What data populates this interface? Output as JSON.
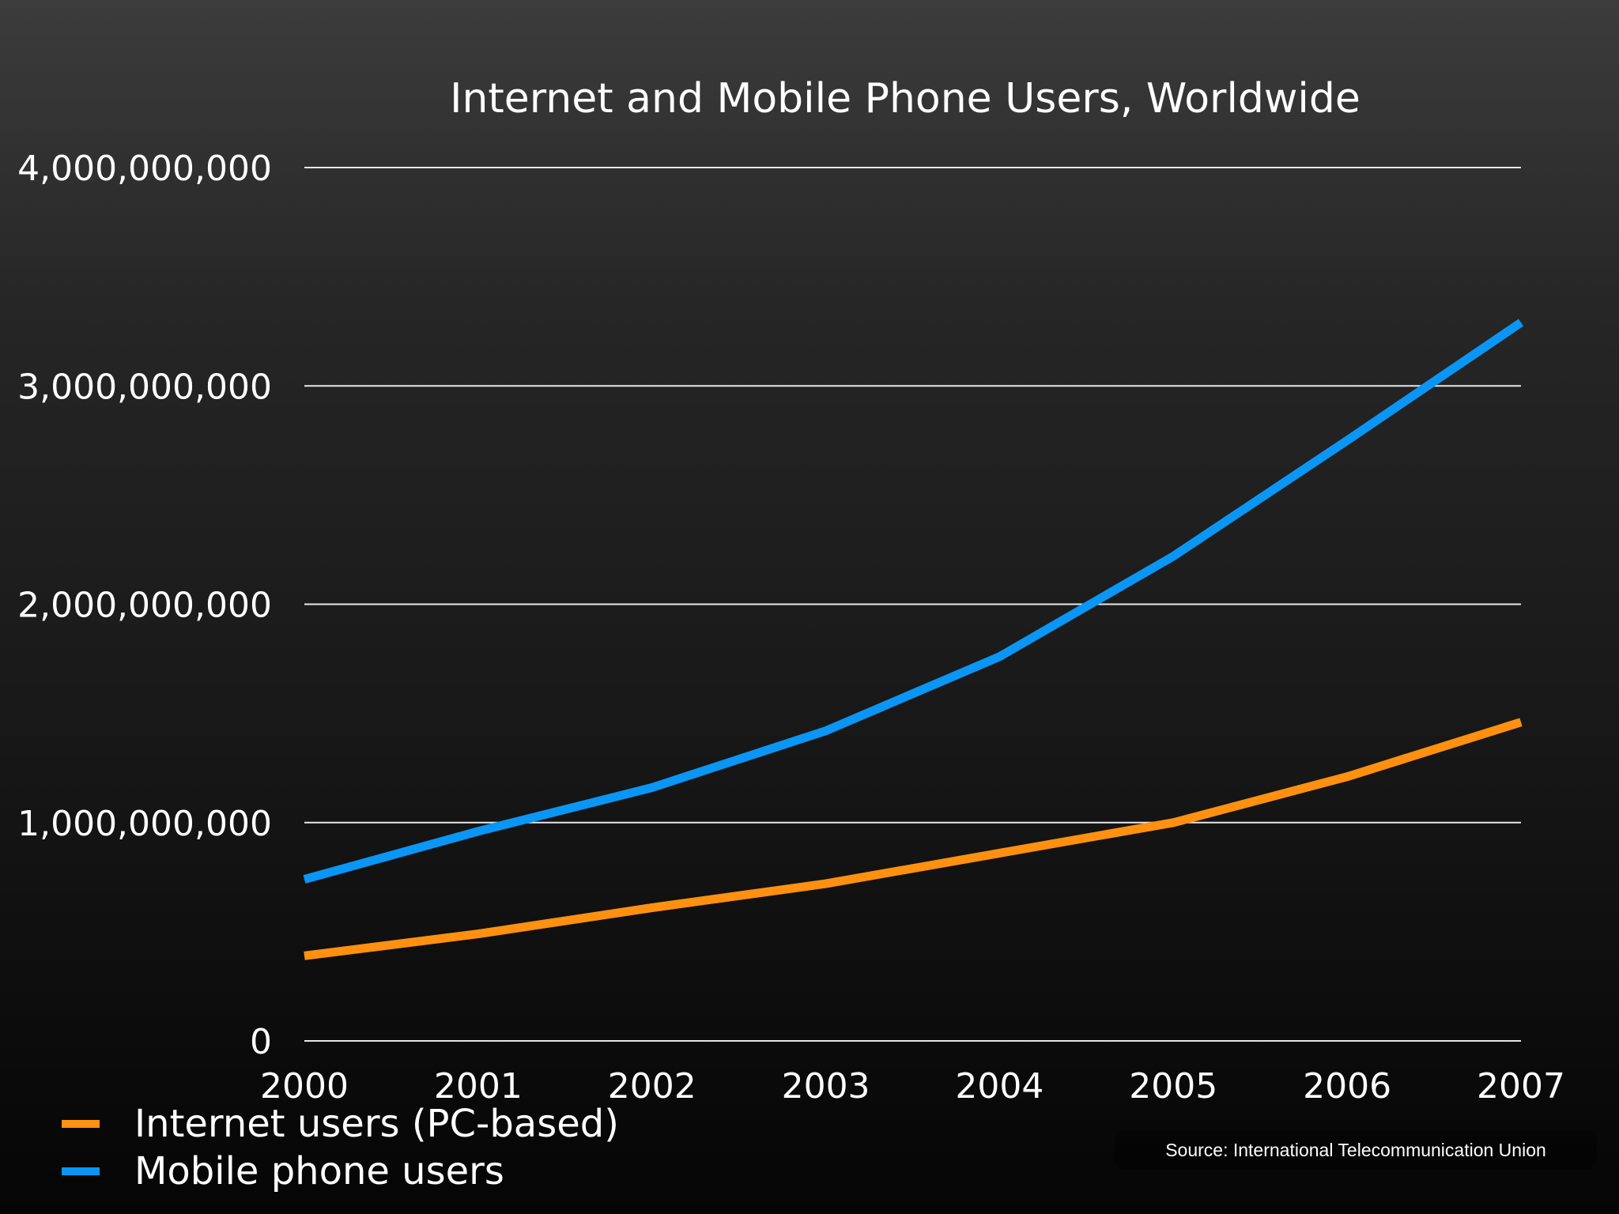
{
  "chart_data": {
    "type": "line",
    "title": "Internet and Mobile Phone Users, Worldwide",
    "xlabel": "",
    "ylabel": "",
    "x": [
      "2000",
      "2001",
      "2002",
      "2003",
      "2004",
      "2005",
      "2006",
      "2007"
    ],
    "ylim": [
      0,
      4000000000
    ],
    "yticks": [
      0,
      1000000000,
      2000000000,
      3000000000,
      4000000000
    ],
    "ytick_labels": [
      "0",
      "1,000,000,000",
      "2,000,000,000",
      "3,000,000,000",
      "4,000,000,000"
    ],
    "grid": true,
    "legend_position": "bottom-left",
    "series": [
      {
        "name": "Internet users (PC-based)",
        "color": "#ff9010",
        "values": [
          390000000,
          490000000,
          610000000,
          720000000,
          860000000,
          1000000000,
          1210000000,
          1460000000
        ]
      },
      {
        "name": "Mobile phone users",
        "color": "#0a96f5",
        "values": [
          740000000,
          960000000,
          1160000000,
          1420000000,
          1760000000,
          2220000000,
          2750000000,
          3290000000
        ]
      }
    ]
  },
  "source": {
    "text": "Source: International Telecommunication Union"
  }
}
